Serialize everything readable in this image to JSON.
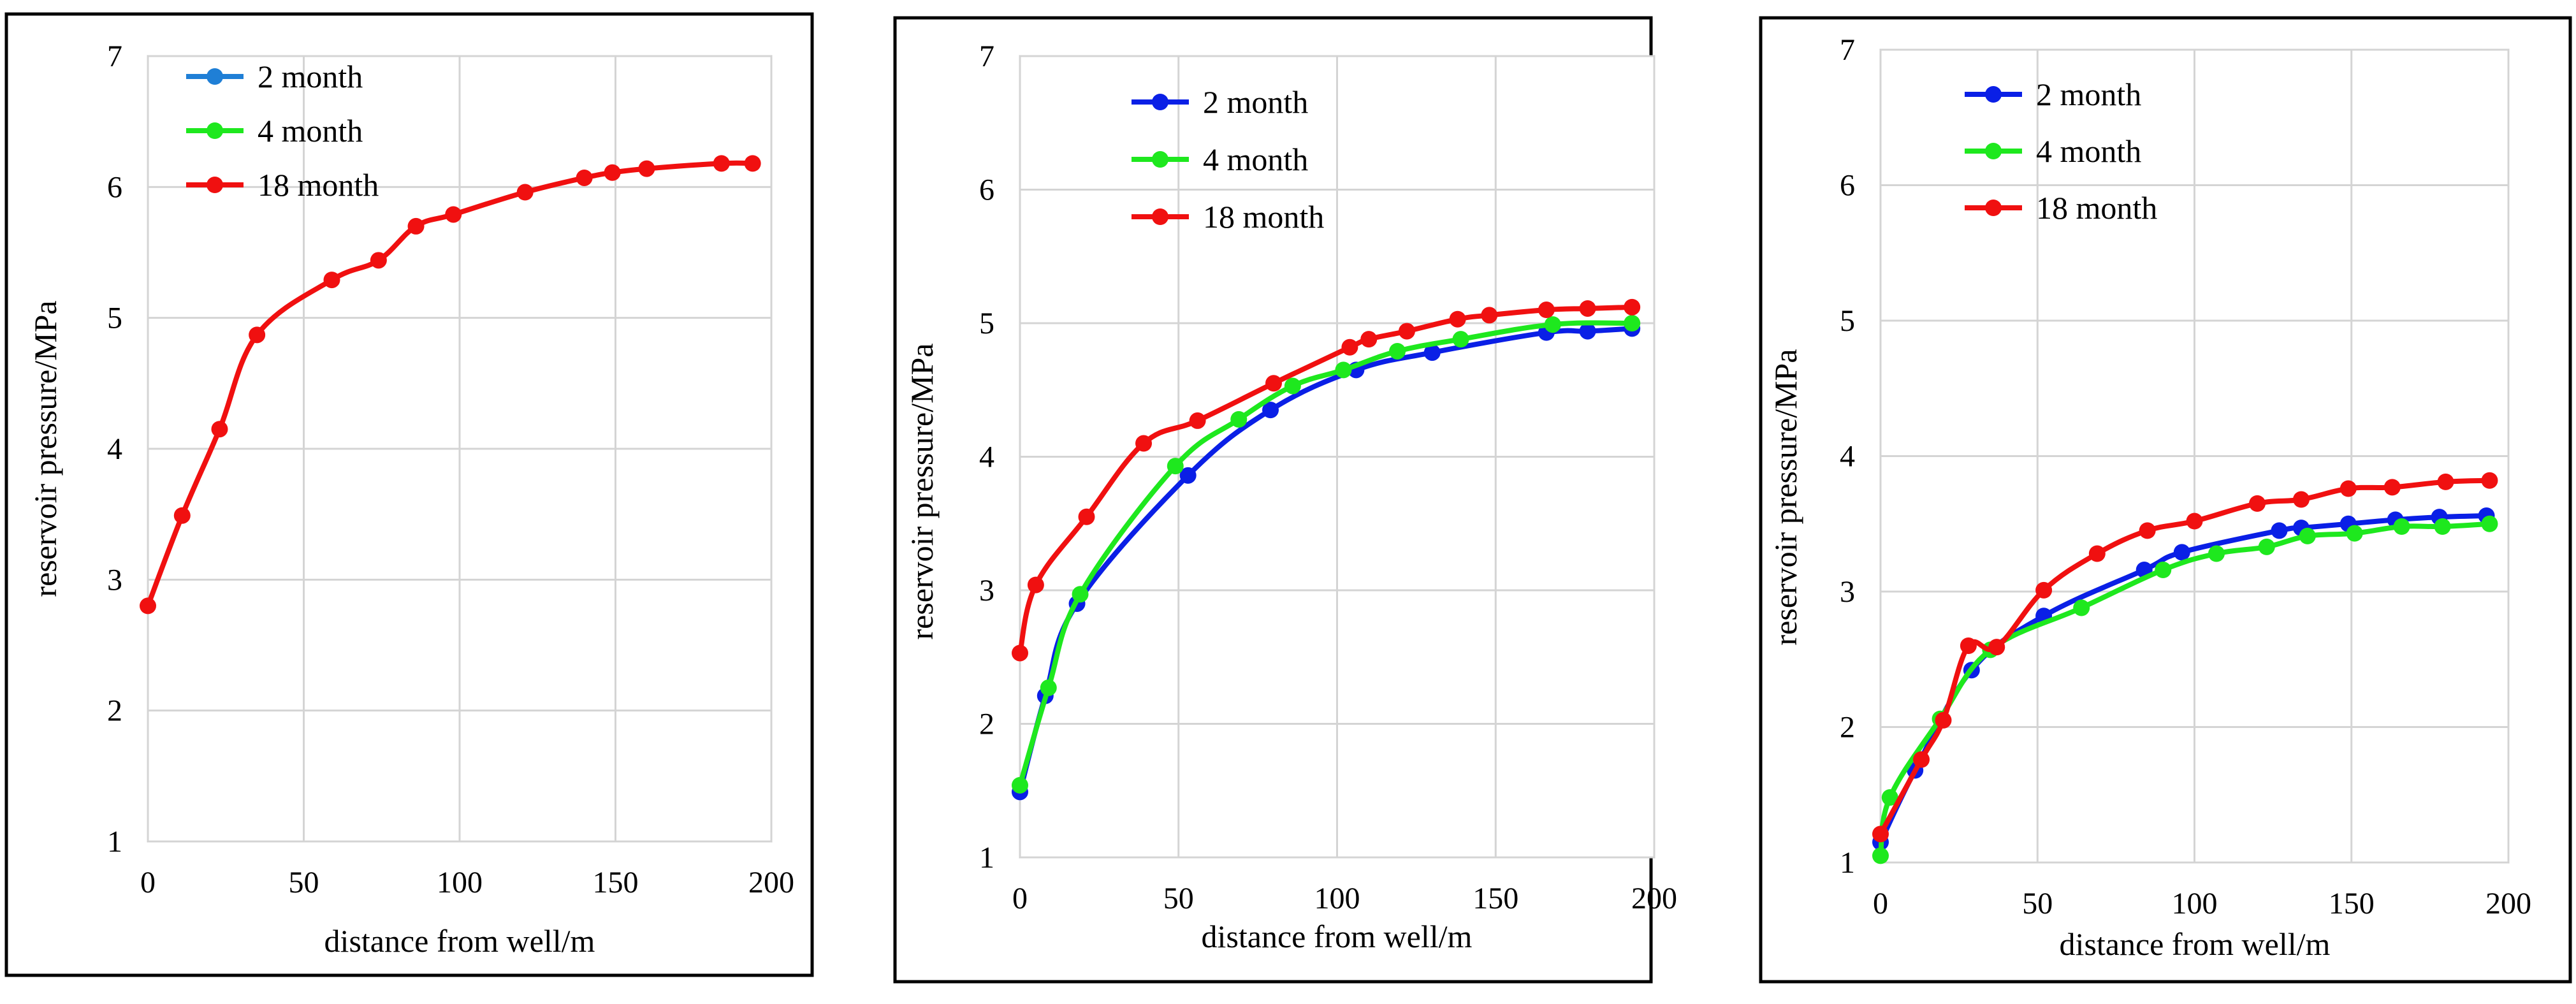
{
  "colors": {
    "blue": "#0a1fe6",
    "blue_legend": "#1f7fd6",
    "green": "#1ee81e",
    "red": "#f01010",
    "grid": "#d4d4d4",
    "frame": "#000000"
  },
  "chart_data": [
    {
      "type": "line",
      "xlabel": "distance from well/m",
      "ylabel": "reservoir pressure/MPa",
      "xlim": [
        0,
        200
      ],
      "ylim": [
        1,
        7
      ],
      "xticks": [
        "0",
        "50",
        "100",
        "150",
        "200"
      ],
      "yticks": [
        "1",
        "2",
        "3",
        "4",
        "5",
        "6",
        "7"
      ],
      "legend": [
        "2 month",
        "4 month",
        "18 month"
      ],
      "series": [
        {
          "name": "2 month",
          "color": "#1f7fd6",
          "points": []
        },
        {
          "name": "4 month",
          "color": "#1ee81e",
          "points": []
        },
        {
          "name": "18 month",
          "color": "#f01010",
          "points": [
            [
              0,
              2.8
            ],
            [
              11,
              3.49
            ],
            [
              23,
              4.15
            ],
            [
              35,
              4.87
            ],
            [
              59,
              5.29
            ],
            [
              74,
              5.44
            ],
            [
              86,
              5.7
            ],
            [
              98,
              5.79
            ],
            [
              121,
              5.96
            ],
            [
              140,
              6.07
            ],
            [
              149,
              6.11
            ],
            [
              160,
              6.14
            ],
            [
              184,
              6.18
            ],
            [
              194,
              6.18
            ]
          ]
        }
      ]
    },
    {
      "type": "line",
      "xlabel": "distance from well/m",
      "ylabel": "reservoir pressure/MPa",
      "xlim": [
        0,
        200
      ],
      "ylim": [
        1,
        7
      ],
      "xticks": [
        "0",
        "50",
        "100",
        "150",
        "200"
      ],
      "yticks": [
        "1",
        "2",
        "3",
        "4",
        "5",
        "6",
        "7"
      ],
      "legend": [
        "2 month",
        "4 month",
        "18 month"
      ],
      "series": [
        {
          "name": "2 month",
          "color": "#0a1fe6",
          "points": [
            [
              0,
              1.49
            ],
            [
              8,
              2.21
            ],
            [
              18,
              2.9
            ],
            [
              53,
              3.86
            ],
            [
              79,
              4.35
            ],
            [
              106,
              4.65
            ],
            [
              130,
              4.78
            ],
            [
              166,
              4.93
            ],
            [
              179,
              4.94
            ],
            [
              193,
              4.96
            ]
          ]
        },
        {
          "name": "4 month",
          "color": "#1ee81e",
          "points": [
            [
              0,
              1.54
            ],
            [
              9,
              2.27
            ],
            [
              19,
              2.97
            ],
            [
              49,
              3.93
            ],
            [
              69,
              4.28
            ],
            [
              86,
              4.53
            ],
            [
              102,
              4.65
            ],
            [
              119,
              4.79
            ],
            [
              139,
              4.88
            ],
            [
              168,
              4.99
            ],
            [
              193,
              5.0
            ]
          ]
        },
        {
          "name": "18 month",
          "color": "#f01010",
          "points": [
            [
              0,
              2.53
            ],
            [
              5,
              3.04
            ],
            [
              21,
              3.55
            ],
            [
              39,
              4.1
            ],
            [
              56,
              4.27
            ],
            [
              80,
              4.55
            ],
            [
              104,
              4.82
            ],
            [
              110,
              4.88
            ],
            [
              122,
              4.94
            ],
            [
              138,
              5.03
            ],
            [
              148,
              5.06
            ],
            [
              166,
              5.1
            ],
            [
              179,
              5.11
            ],
            [
              193,
              5.12
            ]
          ]
        }
      ]
    },
    {
      "type": "line",
      "xlabel": "distance from well/m",
      "ylabel": "reservoir pressure/MPa",
      "xlim": [
        0,
        200
      ],
      "ylim": [
        1,
        7
      ],
      "xticks": [
        "0",
        "50",
        "100",
        "150",
        "200"
      ],
      "yticks": [
        "1",
        "2",
        "3",
        "4",
        "5",
        "6",
        "7"
      ],
      "legend": [
        "2 month",
        "4 month",
        "18 month"
      ],
      "series": [
        {
          "name": "2 month",
          "color": "#0a1fe6",
          "points": [
            [
              0,
              1.15
            ],
            [
              11,
              1.68
            ],
            [
              29,
              2.42
            ],
            [
              52,
              2.82
            ],
            [
              84,
              3.16
            ],
            [
              96,
              3.29
            ],
            [
              127,
              3.45
            ],
            [
              134,
              3.47
            ],
            [
              149,
              3.5
            ],
            [
              164,
              3.53
            ],
            [
              178,
              3.55
            ],
            [
              193,
              3.56
            ]
          ]
        },
        {
          "name": "4 month",
          "color": "#1ee81e",
          "points": [
            [
              0,
              1.05
            ],
            [
              3,
              1.48
            ],
            [
              19,
              2.06
            ],
            [
              35,
              2.57
            ],
            [
              64,
              2.88
            ],
            [
              90,
              3.16
            ],
            [
              107,
              3.28
            ],
            [
              123,
              3.33
            ],
            [
              136,
              3.41
            ],
            [
              151,
              3.43
            ],
            [
              166,
              3.48
            ],
            [
              179,
              3.48
            ],
            [
              194,
              3.5
            ]
          ]
        },
        {
          "name": "18 month",
          "color": "#f01010",
          "points": [
            [
              0,
              1.21
            ],
            [
              13,
              1.76
            ],
            [
              20,
              2.05
            ],
            [
              28,
              2.6
            ],
            [
              37,
              2.59
            ],
            [
              52,
              3.01
            ],
            [
              69,
              3.28
            ],
            [
              85,
              3.45
            ],
            [
              100,
              3.52
            ],
            [
              120,
              3.65
            ],
            [
              134,
              3.68
            ],
            [
              149,
              3.76
            ],
            [
              163,
              3.77
            ],
            [
              180,
              3.81
            ],
            [
              194,
              3.82
            ]
          ]
        }
      ]
    }
  ]
}
